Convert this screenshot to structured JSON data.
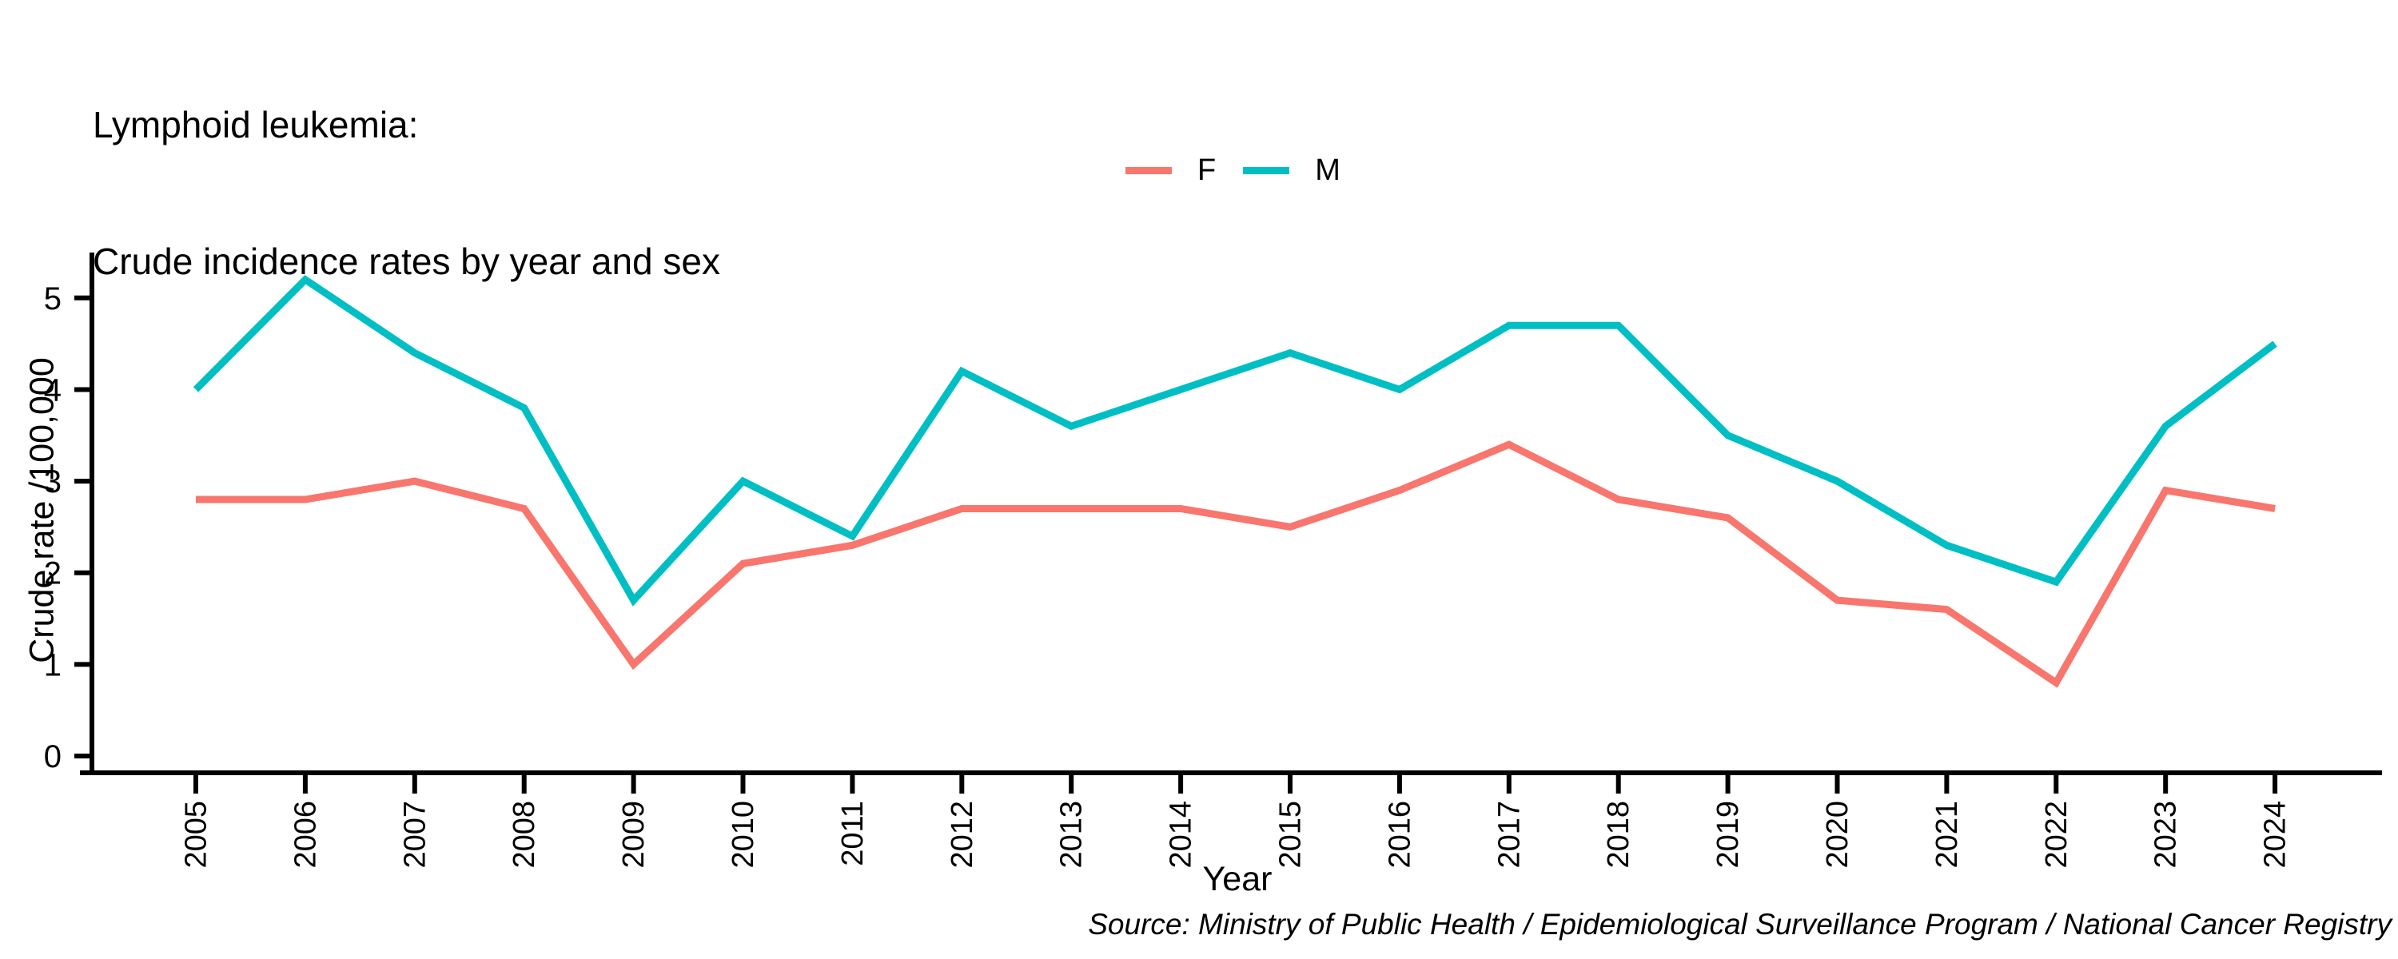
{
  "title": {
    "line1": "Lymphoid leukemia:",
    "line2": "Crude incidence rates by year and sex"
  },
  "axes": {
    "x_label": "Year",
    "y_label": "Crude rate /100,000"
  },
  "source_note": "Source: Ministry of Public Health / Epidemiological Surveillance Program / National Cancer Registry",
  "chart_data": {
    "type": "line",
    "title": "Lymphoid leukemia: Crude incidence rates by year and sex",
    "xlabel": "Year",
    "ylabel": "Crude rate /100,000",
    "categories": [
      2005,
      2006,
      2007,
      2008,
      2009,
      2010,
      2011,
      2012,
      2013,
      2014,
      2015,
      2016,
      2017,
      2018,
      2019,
      2020,
      2021,
      2022,
      2023,
      2024
    ],
    "y_ticks": [
      0,
      1,
      2,
      3,
      4,
      5
    ],
    "ylim": [
      0,
      5.5
    ],
    "grid": false,
    "legend_position": "top-center",
    "axis_color": "#000000",
    "series": [
      {
        "name": "F",
        "color": "#F8766D",
        "values": [
          2.8,
          2.8,
          3.0,
          2.7,
          1.0,
          2.1,
          2.3,
          2.7,
          2.7,
          2.7,
          2.5,
          2.9,
          3.4,
          2.8,
          2.6,
          1.7,
          1.6,
          0.8,
          2.9,
          2.7
        ]
      },
      {
        "name": "M",
        "color": "#00BFC4",
        "values": [
          4.0,
          5.2,
          4.4,
          3.8,
          1.7,
          3.0,
          2.4,
          4.2,
          3.6,
          4.0,
          4.4,
          4.0,
          4.7,
          4.7,
          3.5,
          3.0,
          2.3,
          1.9,
          3.6,
          4.5
        ]
      }
    ]
  }
}
